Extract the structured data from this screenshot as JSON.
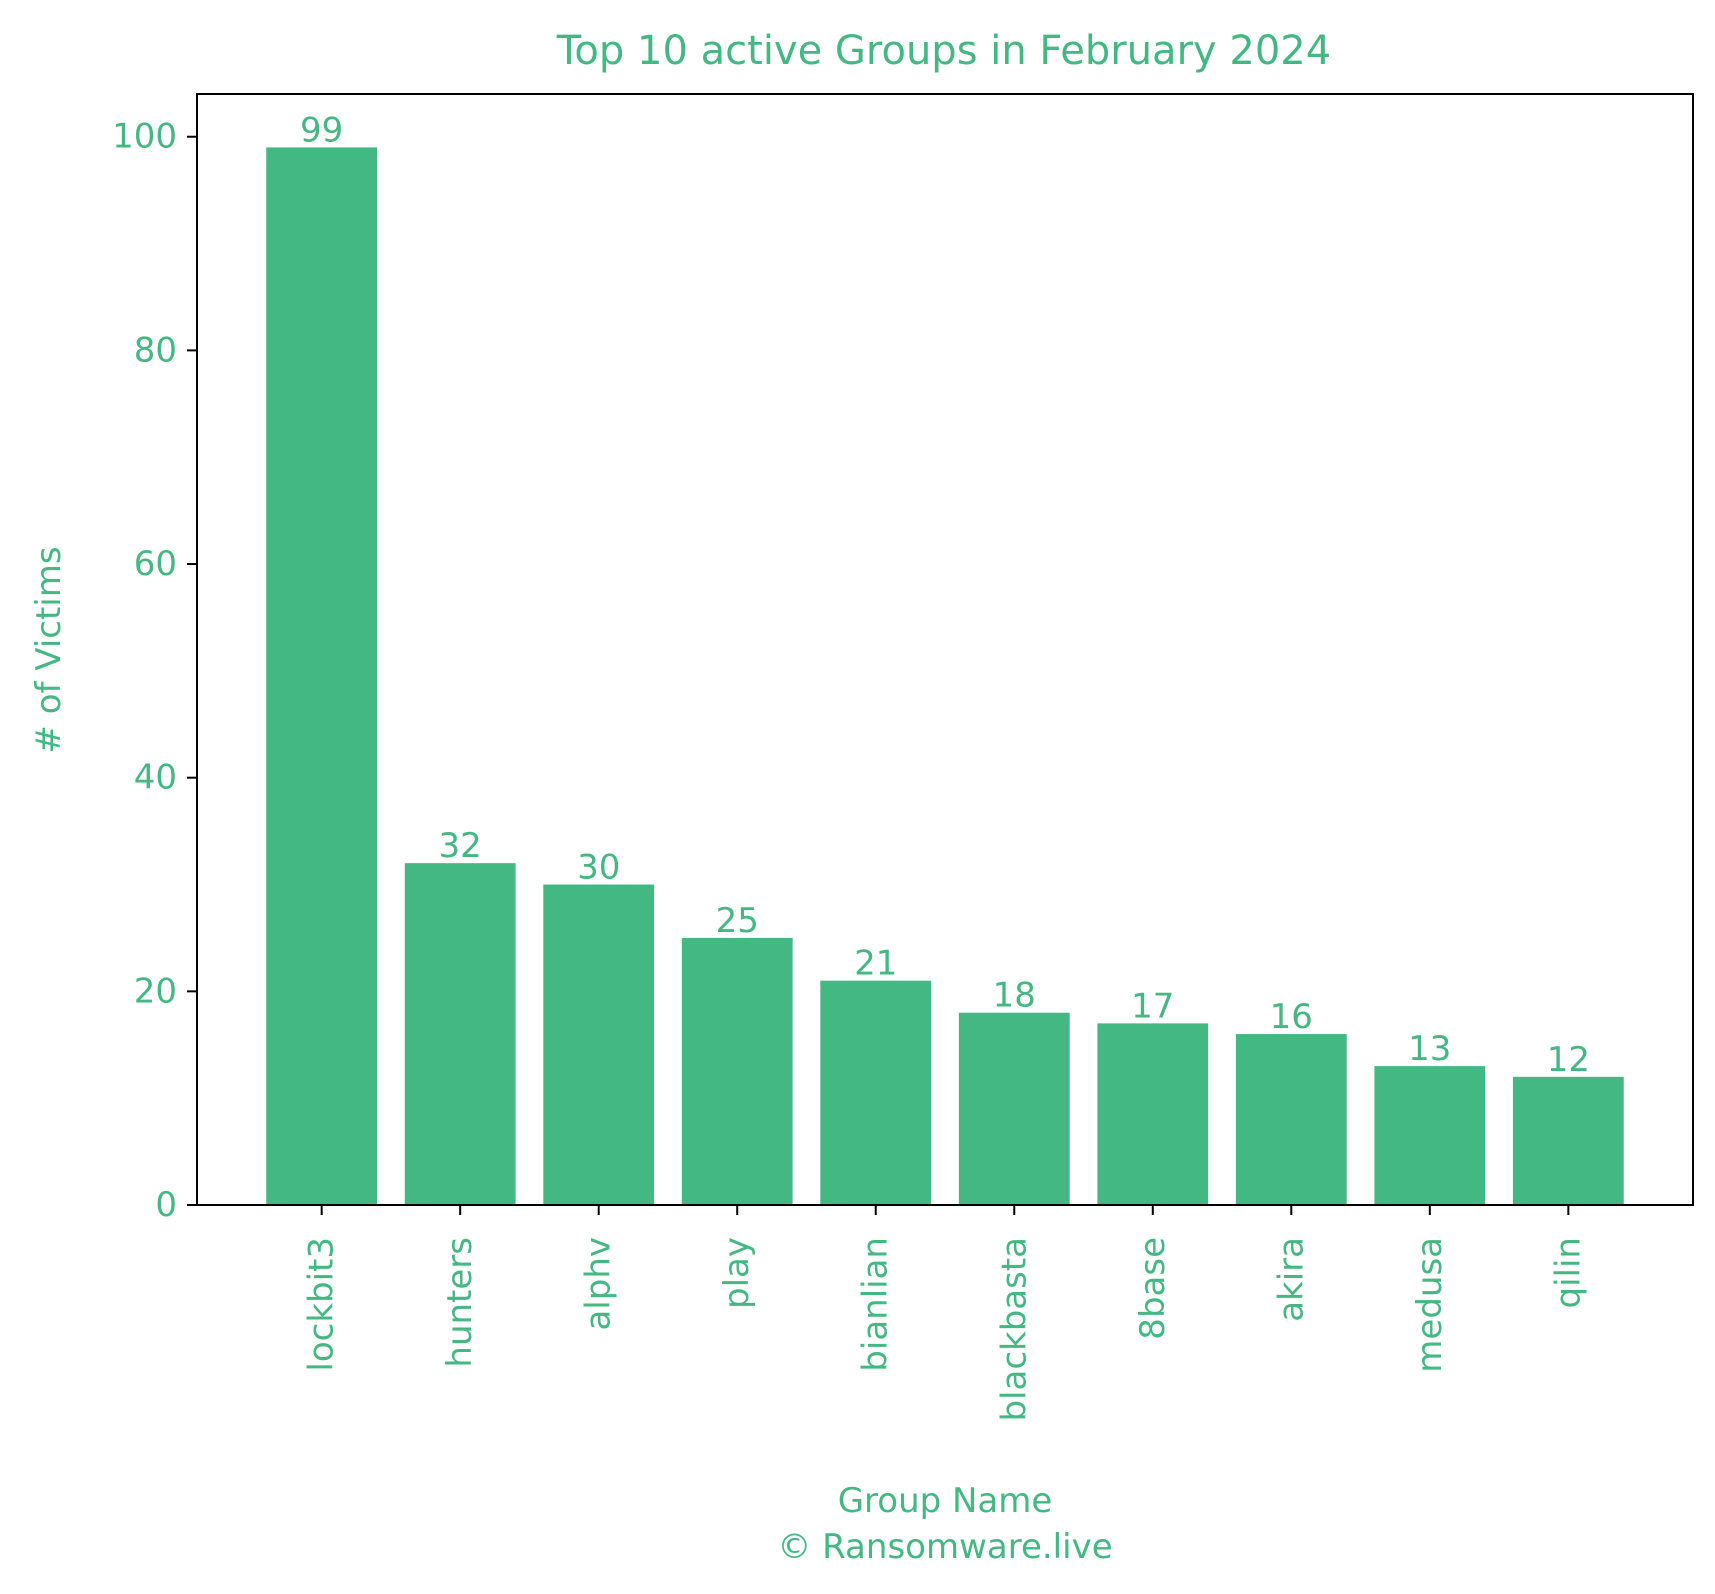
{
  "chart_data": {
    "type": "bar",
    "title": "Top 10 active Groups in February 2024",
    "xlabel": "Group Name",
    "xlabel_sub": "© Ransomware.live",
    "ylabel": "# of Victims",
    "categories": [
      "lockbit3",
      "hunters",
      "alphv",
      "play",
      "bianlian",
      "blackbasta",
      "8base",
      "akira",
      "medusa",
      "qilin"
    ],
    "values": [
      99,
      32,
      30,
      25,
      21,
      18,
      17,
      16,
      13,
      12
    ],
    "ylim": [
      0,
      104
    ],
    "yticks": [
      0,
      20,
      40,
      60,
      80,
      100
    ],
    "grid": false,
    "show_value_labels": true,
    "colors": {
      "bar": "#43b883",
      "text": "#43b883",
      "axis": "#000000"
    }
  }
}
